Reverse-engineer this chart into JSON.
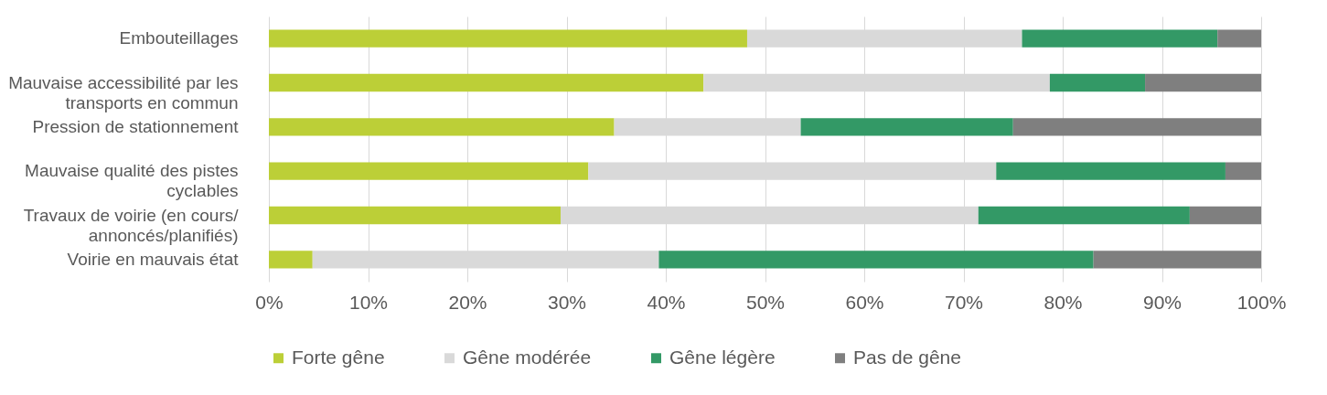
{
  "chart_data": {
    "type": "bar",
    "orientation": "horizontal",
    "stacked": true,
    "categories": [
      "Embouteillages",
      "Mauvaise accessibilité par les transports en commun",
      "Pression de stationnement",
      "Mauvaise qualité des pistes cyclables",
      "Travaux de voirie (en cours/annoncés/planifiés)",
      "Voirie en mauvais état"
    ],
    "series": [
      {
        "name": "Forte gêne",
        "color": "#bccf37",
        "values": [
          48.2,
          43.8,
          34.8,
          32.2,
          29.4,
          4.4
        ]
      },
      {
        "name": "Gêne modérée",
        "color": "#d9d9d9",
        "values": [
          27.7,
          34.9,
          18.8,
          41.1,
          42.1,
          34.9
        ]
      },
      {
        "name": "Gêne légère",
        "color": "#339966",
        "values": [
          19.7,
          9.6,
          21.4,
          23.1,
          21.3,
          43.8
        ]
      },
      {
        "name": "Pas de gêne",
        "color": "#7f7f7f",
        "values": [
          4.4,
          11.7,
          25.0,
          3.6,
          7.2,
          16.9
        ]
      }
    ],
    "xlim": [
      0,
      100
    ],
    "xticks": [
      {
        "value": 0,
        "label": "0%"
      },
      {
        "value": 10,
        "label": "10%"
      },
      {
        "value": 20,
        "label": "20%"
      },
      {
        "value": 30,
        "label": "30%"
      },
      {
        "value": 40,
        "label": "40%"
      },
      {
        "value": 50,
        "label": "50%"
      },
      {
        "value": 60,
        "label": "60%"
      },
      {
        "value": 70,
        "label": "70%"
      },
      {
        "value": 80,
        "label": "80%"
      },
      {
        "value": 90,
        "label": "90%"
      },
      {
        "value": 100,
        "label": "100%"
      }
    ],
    "grid": "x",
    "legend": "bottom"
  }
}
